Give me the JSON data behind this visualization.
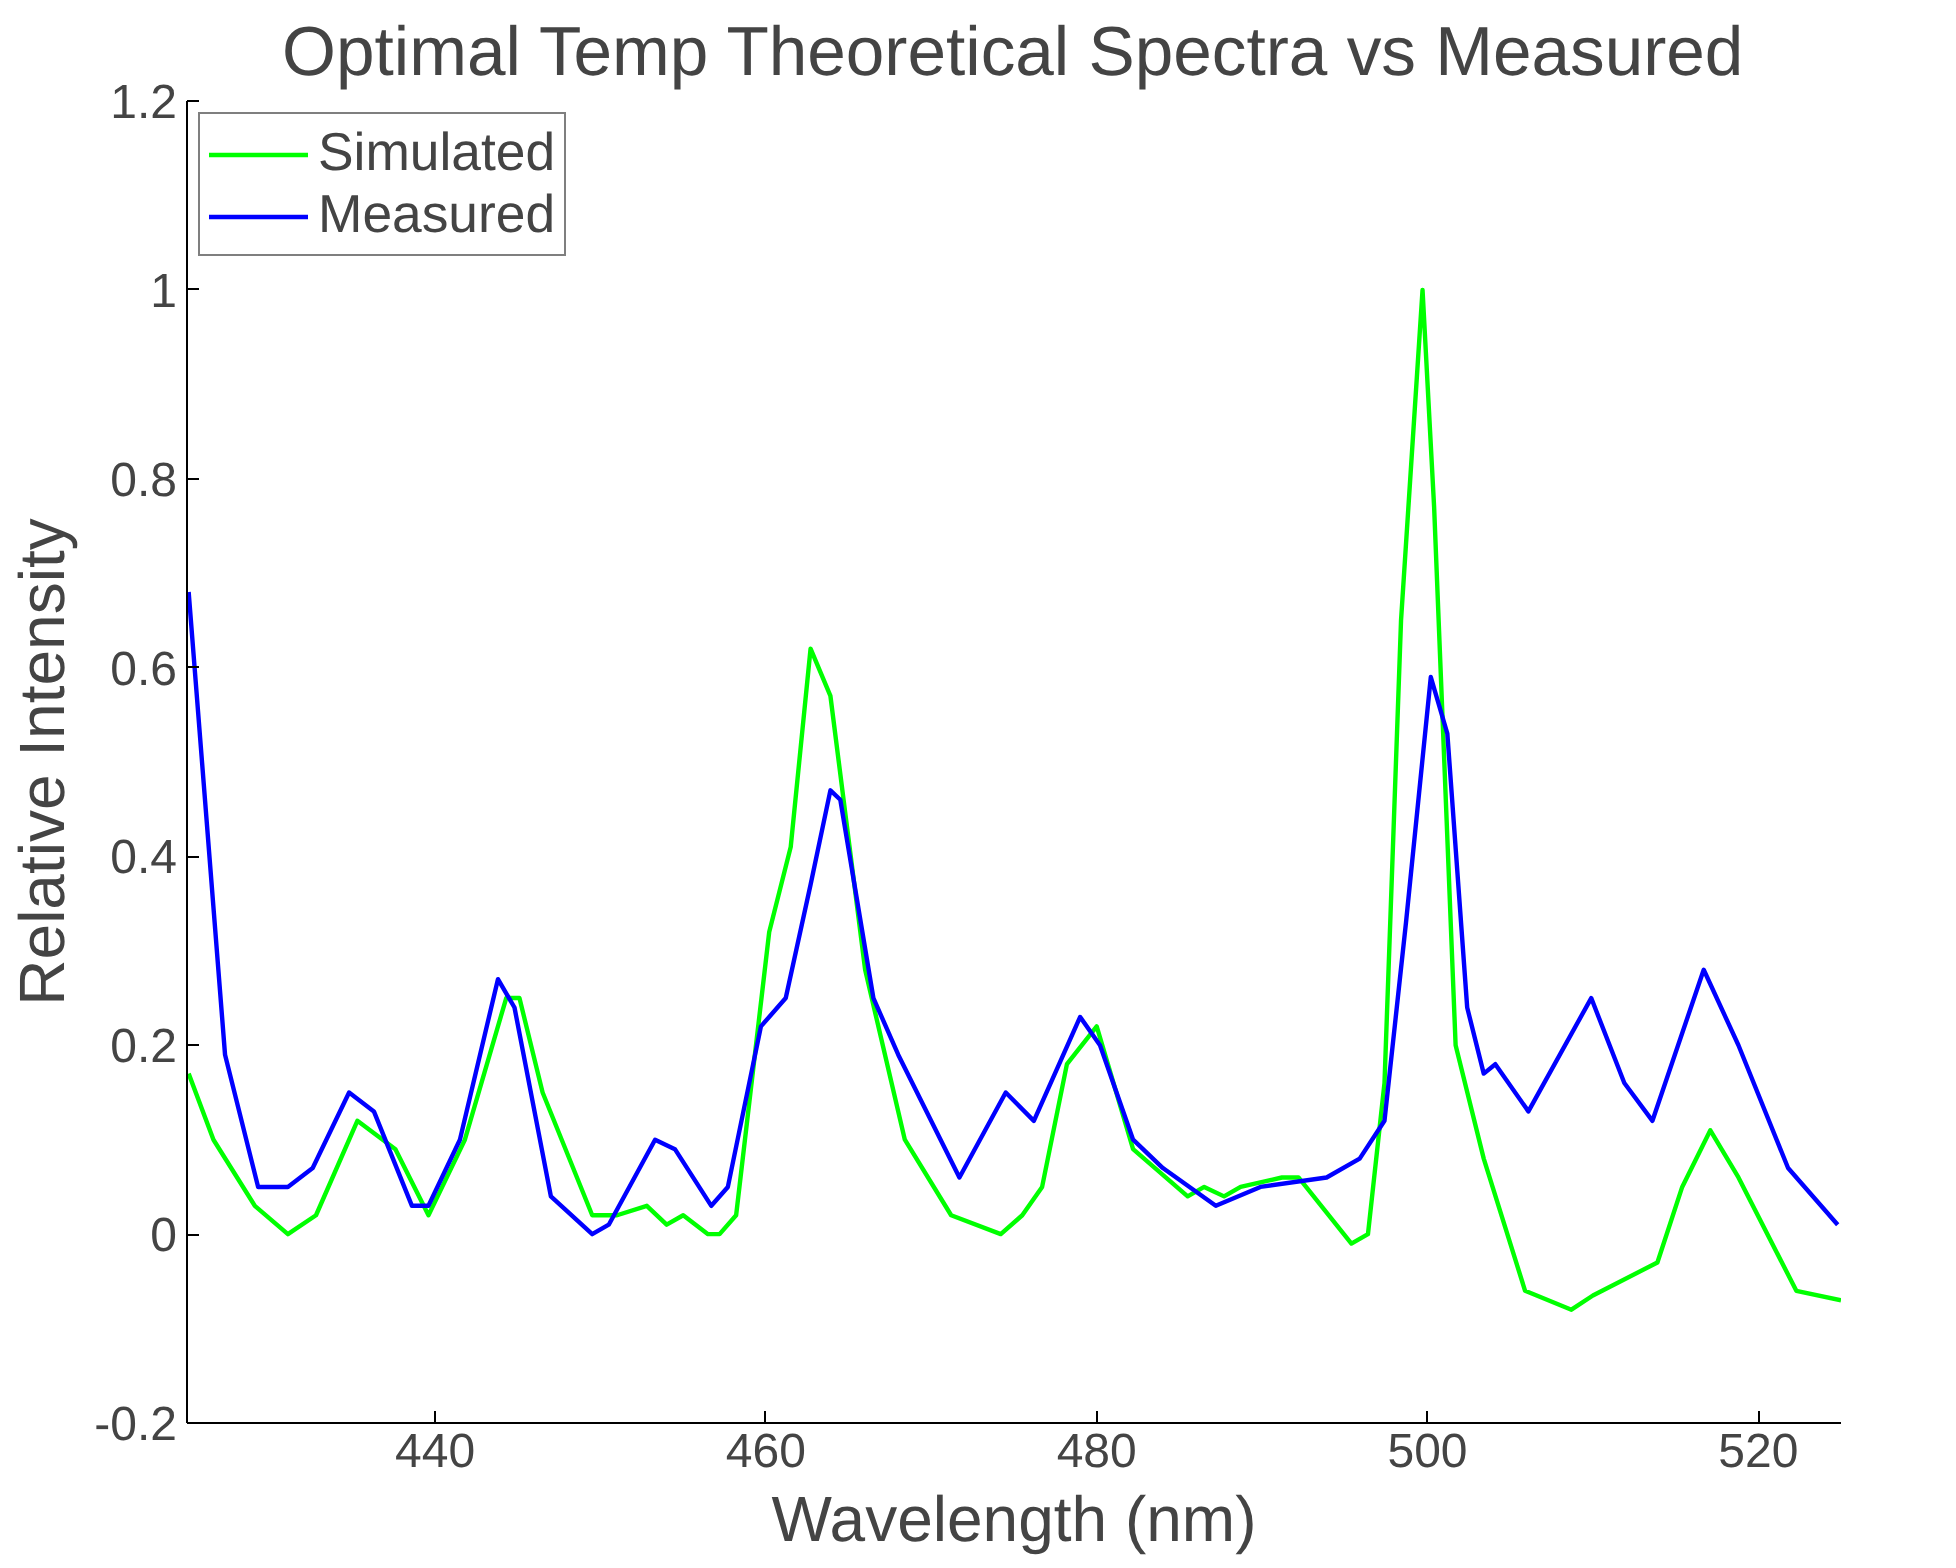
{
  "chart_data": {
    "type": "line",
    "title": "Optimal Temp Theoretical Spectra vs Measured",
    "xlabel": "Wavelength (nm)",
    "ylabel": "Relative Intensity",
    "xlim": [
      425,
      525
    ],
    "xticks": [
      440,
      460,
      480,
      500,
      520
    ],
    "ylim": [
      -0.2,
      1.2
    ],
    "yticks": [
      -0.2,
      0,
      0.2,
      0.4,
      0.6,
      0.8,
      1,
      1.2
    ],
    "grid": false,
    "legend": "top left",
    "line_style": "solid",
    "series": [
      {
        "name": "Simulated",
        "color": "#00ff00",
        "x": [
          425.1,
          426.6,
          429.1,
          431.1,
          432.8,
          435.3,
          437.6,
          439.6,
          441.8,
          444.3,
          445.1,
          446.5,
          449.5,
          451.0,
          452.8,
          454.0,
          455.0,
          456.5,
          457.2,
          458.2,
          460.2,
          461.5,
          462.7,
          463.9,
          466.0,
          468.4,
          471.2,
          474.2,
          475.5,
          476.7,
          478.2,
          480.0,
          482.2,
          485.5,
          486.5,
          487.7,
          488.7,
          491.2,
          492.2,
          495.4,
          496.4,
          497.4,
          498.4,
          499.7,
          500.4,
          501.7,
          503.4,
          505.9,
          508.7,
          510.0,
          513.9,
          515.4,
          517.1,
          518.8,
          522.3,
          525.0
        ],
        "values": [
          0.17,
          0.1,
          0.03,
          0.0,
          0.02,
          0.12,
          0.09,
          0.02,
          0.1,
          0.25,
          0.25,
          0.15,
          0.02,
          0.02,
          0.03,
          0.01,
          0.02,
          0.0,
          0.0,
          0.02,
          0.32,
          0.41,
          0.62,
          0.57,
          0.28,
          0.1,
          0.02,
          0.0,
          0.02,
          0.05,
          0.18,
          0.22,
          0.09,
          0.04,
          0.05,
          0.04,
          0.05,
          0.06,
          0.06,
          -0.01,
          0.0,
          0.16,
          0.65,
          1.0,
          0.77,
          0.2,
          0.08,
          -0.06,
          -0.08,
          -0.065,
          -0.03,
          0.05,
          0.11,
          0.06,
          -0.06,
          -0.07
        ]
      },
      {
        "name": "Measured",
        "color": "#0000ff",
        "x": [
          425.1,
          427.3,
          429.3,
          431.1,
          432.6,
          434.8,
          436.3,
          438.6,
          439.6,
          441.5,
          443.8,
          444.8,
          447.0,
          449.5,
          450.5,
          453.3,
          454.5,
          456.7,
          457.7,
          459.7,
          461.2,
          462.7,
          463.9,
          464.5,
          466.5,
          468.0,
          471.7,
          474.5,
          476.2,
          479.0,
          480.2,
          482.2,
          484.0,
          487.2,
          489.9,
          493.9,
          495.9,
          497.4,
          498.7,
          500.2,
          501.2,
          502.4,
          503.4,
          504.1,
          506.1,
          509.9,
          511.9,
          513.6,
          516.7,
          518.8,
          521.8,
          524.8
        ],
        "values": [
          0.68,
          0.19,
          0.05,
          0.05,
          0.07,
          0.15,
          0.13,
          0.03,
          0.03,
          0.1,
          0.27,
          0.24,
          0.04,
          0.0,
          0.01,
          0.1,
          0.09,
          0.03,
          0.05,
          0.22,
          0.25,
          0.37,
          0.47,
          0.46,
          0.25,
          0.19,
          0.06,
          0.15,
          0.12,
          0.23,
          0.2,
          0.1,
          0.07,
          0.03,
          0.05,
          0.06,
          0.08,
          0.12,
          0.33,
          0.59,
          0.53,
          0.24,
          0.17,
          0.18,
          0.13,
          0.25,
          0.16,
          0.12,
          0.28,
          0.2,
          0.07,
          0.01
        ]
      }
    ]
  }
}
